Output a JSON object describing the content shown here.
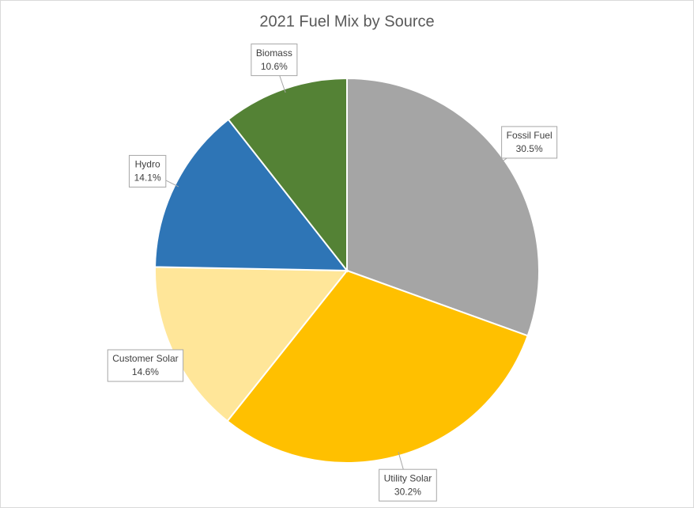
{
  "chart_data": {
    "type": "pie",
    "title": "2021 Fuel Mix by Source",
    "categories": [
      "Fossil Fuel",
      "Utility Solar",
      "Customer Solar",
      "Hydro",
      "Biomass"
    ],
    "values": [
      30.5,
      30.2,
      14.6,
      14.1,
      10.6
    ],
    "value_labels": [
      "30.5%",
      "30.2%",
      "14.6%",
      "14.1%",
      "10.6%"
    ],
    "colors": [
      "#a5a5a5",
      "#ffc000",
      "#ffe699",
      "#2e75b6",
      "#548235"
    ]
  }
}
